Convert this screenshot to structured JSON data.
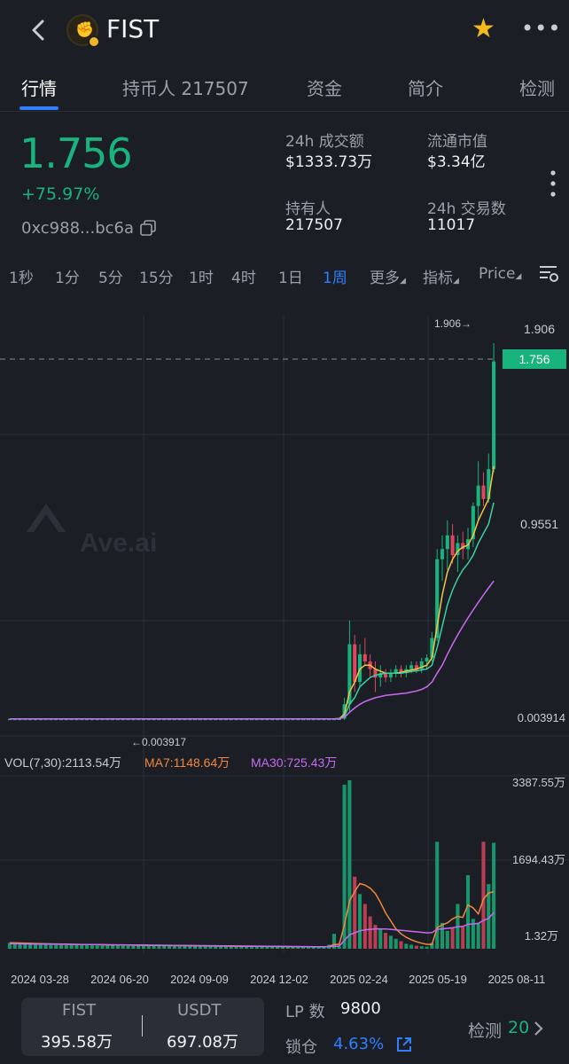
{
  "header": {
    "token": "FIST",
    "logo_icon": "fist-token-logo",
    "favorite_color": "#f5b91e"
  },
  "tabs": [
    {
      "label": "行情",
      "active": true
    },
    {
      "label": "持币人 217507",
      "active": false
    },
    {
      "label": "资金",
      "active": false
    },
    {
      "label": "简介",
      "active": false
    },
    {
      "label": "检测",
      "active": false
    }
  ],
  "stats": {
    "price": "1.756",
    "change": "+75.97%",
    "address": "0xc988...bc6a",
    "volume_24h_label": "24h 成交额",
    "volume_24h_value": "$1333.73万",
    "market_cap_label": "流通市值",
    "market_cap_value": "$3.34亿",
    "holders_label": "持有人",
    "holders_value": "217507",
    "txns_24h_label": "24h 交易数",
    "txns_24h_value": "11017"
  },
  "intervals": [
    "1秒",
    "1分",
    "5分",
    "15分",
    "1时",
    "4时",
    "1日",
    "1周"
  ],
  "interval_active": "1周",
  "toolbar": {
    "more": "更多",
    "indicators": "指标",
    "price": "Price"
  },
  "chart_data": {
    "type": "candlestick",
    "watermark": "Ave.ai",
    "price_axis": {
      "top": "1.906",
      "mid": "0.9551",
      "low": "0.003914"
    },
    "current_price": "1.756",
    "high_marker": "1.906→",
    "low_marker": "←0.003917",
    "x_labels": [
      "2024 03-28",
      "2024 06-20",
      "2024 09-09",
      "2024 12-02",
      "2025 02-24",
      "2025 05-19",
      "2025 08-11"
    ],
    "volume_legend": {
      "vol": "VOL(7,30):2113.54万",
      "ma7": "MA7:1148.64万",
      "ma30": "MA30:725.43万"
    },
    "volume_axis": {
      "top": "3387.55万",
      "mid": "1694.43万",
      "low": "1.32万"
    },
    "colors": {
      "up": "#19b37d",
      "down": "#e0475f",
      "ma_short": "#f5c542",
      "ma_mid": "#3ad29f",
      "ma_long": "#c86bf0",
      "vol_ma7": "#f0883e",
      "vol_ma30": "#c86bf0"
    },
    "candles": [
      [
        0.0039,
        0.0039,
        0.0039,
        0.0039
      ],
      [
        0.0039,
        0.0039,
        0.0039,
        0.0039
      ],
      [
        0.0039,
        0.0039,
        0.0039,
        0.0039
      ],
      [
        0.0039,
        0.0039,
        0.0039,
        0.0039
      ],
      [
        0.0039,
        0.0039,
        0.0039,
        0.0039
      ],
      [
        0.0039,
        0.0039,
        0.0039,
        0.0039
      ],
      [
        0.0039,
        0.0039,
        0.0039,
        0.0039
      ],
      [
        0.0039,
        0.0039,
        0.0039,
        0.0039
      ],
      [
        0.0039,
        0.0039,
        0.0039,
        0.0039
      ],
      [
        0.0039,
        0.0039,
        0.0039,
        0.0039
      ],
      [
        0.0039,
        0.0039,
        0.0039,
        0.0039
      ],
      [
        0.0039,
        0.0039,
        0.0039,
        0.0039
      ],
      [
        0.0039,
        0.0039,
        0.0039,
        0.0039
      ],
      [
        0.0039,
        0.0039,
        0.0039,
        0.0039
      ],
      [
        0.0039,
        0.0039,
        0.0039,
        0.0039
      ],
      [
        0.0039,
        0.0039,
        0.0039,
        0.0039
      ],
      [
        0.0039,
        0.0039,
        0.0039,
        0.0039
      ],
      [
        0.0039,
        0.0039,
        0.0039,
        0.0039
      ],
      [
        0.0039,
        0.0039,
        0.0039,
        0.0039
      ],
      [
        0.0039,
        0.0039,
        0.0039,
        0.0039
      ],
      [
        0.0039,
        0.0039,
        0.0039,
        0.0039
      ],
      [
        0.0039,
        0.0039,
        0.0039,
        0.0039
      ],
      [
        0.0039,
        0.0039,
        0.0039,
        0.0039
      ],
      [
        0.0039,
        0.0039,
        0.0039,
        0.0039
      ],
      [
        0.0039,
        0.0039,
        0.0039,
        0.0039
      ],
      [
        0.0039,
        0.0039,
        0.0039,
        0.0039
      ],
      [
        0.0039,
        0.0039,
        0.0039,
        0.0039
      ],
      [
        0.0039,
        0.0039,
        0.0039,
        0.0039
      ],
      [
        0.0039,
        0.0039,
        0.0039,
        0.0039
      ],
      [
        0.0039,
        0.0039,
        0.0039,
        0.0039
      ],
      [
        0.0039,
        0.0039,
        0.0039,
        0.0039
      ],
      [
        0.0039,
        0.0039,
        0.0039,
        0.0039
      ],
      [
        0.0039,
        0.0039,
        0.0039,
        0.0039
      ],
      [
        0.0039,
        0.0039,
        0.0039,
        0.0039
      ],
      [
        0.0039,
        0.0039,
        0.0039,
        0.0039
      ],
      [
        0.0039,
        0.0039,
        0.0039,
        0.0039
      ],
      [
        0.0039,
        0.0039,
        0.0039,
        0.0039
      ],
      [
        0.0039,
        0.0039,
        0.0039,
        0.0039
      ],
      [
        0.0039,
        0.0039,
        0.0039,
        0.0039
      ],
      [
        0.0039,
        0.0039,
        0.0039,
        0.0039
      ],
      [
        0.0039,
        0.0039,
        0.0039,
        0.0039
      ],
      [
        0.0039,
        0.0039,
        0.0039,
        0.0039
      ],
      [
        0.0039,
        0.0039,
        0.0039,
        0.0039
      ],
      [
        0.0039,
        0.0039,
        0.0039,
        0.0039
      ],
      [
        0.0039,
        0.0039,
        0.0039,
        0.0039
      ],
      [
        0.0039,
        0.0039,
        0.0039,
        0.0039
      ],
      [
        0.0039,
        0.0039,
        0.0039,
        0.0039
      ],
      [
        0.0039,
        0.0039,
        0.0039,
        0.0039
      ],
      [
        0.0039,
        0.0039,
        0.0039,
        0.0039
      ],
      [
        0.0039,
        0.0039,
        0.0039,
        0.0039
      ],
      [
        0.0039,
        0.0039,
        0.0039,
        0.0039
      ],
      [
        0.0039,
        0.0039,
        0.0039,
        0.0039
      ],
      [
        0.0039,
        0.0039,
        0.0039,
        0.0039
      ],
      [
        0.0039,
        0.0039,
        0.0039,
        0.0039
      ],
      [
        0.0039,
        0.0039,
        0.0039,
        0.0039
      ],
      [
        0.0039,
        0.0039,
        0.0039,
        0.0039
      ],
      [
        0.0039,
        0.0039,
        0.0039,
        0.0039
      ],
      [
        0.0039,
        0.0039,
        0.0039,
        0.0039
      ],
      [
        0.0039,
        0.0039,
        0.0039,
        0.0039
      ],
      [
        0.0039,
        0.0039,
        0.0039,
        0.0039
      ],
      [
        0.0039,
        0.0039,
        0.0039,
        0.0039
      ],
      [
        0.0039,
        0.0039,
        0.0039,
        0.0039
      ],
      [
        0.0039,
        0.0039,
        0.0039,
        0.0039
      ],
      [
        0.0039,
        0.0039,
        0.0039,
        0.0039
      ],
      [
        0.004,
        0.004,
        0.0039,
        0.004
      ],
      [
        0.004,
        0.03,
        0.003,
        0.02
      ],
      [
        0.02,
        0.24,
        0.01,
        0.16
      ],
      [
        0.16,
        0.19,
        0.04,
        0.06
      ],
      [
        0.06,
        0.16,
        0.05,
        0.13
      ],
      [
        0.13,
        0.18,
        0.1,
        0.11
      ],
      [
        0.11,
        0.13,
        0.07,
        0.09
      ],
      [
        0.09,
        0.11,
        0.04,
        0.07
      ],
      [
        0.07,
        0.1,
        0.05,
        0.08
      ],
      [
        0.08,
        0.09,
        0.06,
        0.07
      ],
      [
        0.07,
        0.09,
        0.06,
        0.08
      ],
      [
        0.08,
        0.1,
        0.07,
        0.09
      ],
      [
        0.09,
        0.1,
        0.07,
        0.08
      ],
      [
        0.08,
        0.1,
        0.07,
        0.09
      ],
      [
        0.09,
        0.11,
        0.08,
        0.1
      ],
      [
        0.1,
        0.11,
        0.08,
        0.09
      ],
      [
        0.09,
        0.12,
        0.08,
        0.11
      ],
      [
        0.11,
        0.13,
        0.09,
        0.12
      ],
      [
        0.12,
        0.2,
        0.11,
        0.18
      ],
      [
        0.18,
        0.55,
        0.17,
        0.5
      ],
      [
        0.5,
        0.62,
        0.4,
        0.55
      ],
      [
        0.55,
        0.7,
        0.45,
        0.62
      ],
      [
        0.62,
        0.68,
        0.48,
        0.52
      ],
      [
        0.52,
        0.62,
        0.44,
        0.58
      ],
      [
        0.58,
        0.64,
        0.5,
        0.55
      ],
      [
        0.55,
        0.66,
        0.5,
        0.6
      ],
      [
        0.6,
        0.8,
        0.56,
        0.78
      ],
      [
        0.78,
        1.05,
        0.7,
        0.9
      ],
      [
        0.9,
        0.98,
        0.78,
        0.82
      ],
      [
        0.82,
        1.1,
        0.8,
        1.0
      ],
      [
        1.0,
        1.9,
        0.98,
        1.756
      ]
    ],
    "ma_short": [
      0.0039,
      0.0039,
      0.0039,
      0.0039,
      0.0039,
      0.0039,
      0.0039,
      0.0039,
      0.0039,
      0.0039,
      0.0039,
      0.0039,
      0.0039,
      0.0039,
      0.0039,
      0.0039,
      0.0039,
      0.0039,
      0.0039,
      0.0039,
      0.0039,
      0.0039,
      0.0039,
      0.0039,
      0.0039,
      0.0039,
      0.0039,
      0.0039,
      0.0039,
      0.0039,
      0.0039,
      0.0039,
      0.0039,
      0.0039,
      0.0039,
      0.0039,
      0.0039,
      0.0039,
      0.0039,
      0.0039,
      0.0039,
      0.0039,
      0.0039,
      0.0039,
      0.0039,
      0.0039,
      0.0039,
      0.0039,
      0.0039,
      0.0039,
      0.0039,
      0.0039,
      0.0039,
      0.0039,
      0.0039,
      0.0039,
      0.0039,
      0.0039,
      0.0039,
      0.0039,
      0.0039,
      0.0039,
      0.0039,
      0.0039,
      0.004,
      0.008,
      0.04,
      0.06,
      0.09,
      0.1,
      0.1,
      0.09,
      0.085,
      0.08,
      0.08,
      0.08,
      0.082,
      0.085,
      0.088,
      0.09,
      0.095,
      0.1,
      0.12,
      0.22,
      0.34,
      0.44,
      0.5,
      0.54,
      0.56,
      0.57,
      0.62,
      0.7,
      0.76,
      0.82,
      1.02
    ],
    "ma_mid": [
      0.0039,
      0.0039,
      0.0039,
      0.0039,
      0.0039,
      0.0039,
      0.0039,
      0.0039,
      0.0039,
      0.0039,
      0.0039,
      0.0039,
      0.0039,
      0.0039,
      0.0039,
      0.0039,
      0.0039,
      0.0039,
      0.0039,
      0.0039,
      0.0039,
      0.0039,
      0.0039,
      0.0039,
      0.0039,
      0.0039,
      0.0039,
      0.0039,
      0.0039,
      0.0039,
      0.0039,
      0.0039,
      0.0039,
      0.0039,
      0.0039,
      0.0039,
      0.0039,
      0.0039,
      0.0039,
      0.0039,
      0.0039,
      0.0039,
      0.0039,
      0.0039,
      0.0039,
      0.0039,
      0.0039,
      0.0039,
      0.0039,
      0.0039,
      0.0039,
      0.0039,
      0.0039,
      0.0039,
      0.0039,
      0.0039,
      0.0039,
      0.0039,
      0.0039,
      0.0039,
      0.0039,
      0.0039,
      0.0039,
      0.0039,
      0.004,
      0.006,
      0.02,
      0.03,
      0.05,
      0.06,
      0.07,
      0.075,
      0.078,
      0.08,
      0.08,
      0.08,
      0.08,
      0.082,
      0.084,
      0.086,
      0.088,
      0.09,
      0.1,
      0.15,
      0.22,
      0.3,
      0.36,
      0.41,
      0.45,
      0.48,
      0.52,
      0.58,
      0.63,
      0.68,
      0.8
    ],
    "ma_long": [
      0.0039,
      0.0039,
      0.0039,
      0.0039,
      0.0039,
      0.0039,
      0.0039,
      0.0039,
      0.0039,
      0.0039,
      0.0039,
      0.0039,
      0.0039,
      0.0039,
      0.0039,
      0.0039,
      0.0039,
      0.0039,
      0.0039,
      0.0039,
      0.0039,
      0.0039,
      0.0039,
      0.0039,
      0.0039,
      0.0039,
      0.0039,
      0.0039,
      0.0039,
      0.0039,
      0.0039,
      0.0039,
      0.0039,
      0.0039,
      0.0039,
      0.0039,
      0.0039,
      0.0039,
      0.0039,
      0.0039,
      0.0039,
      0.0039,
      0.0039,
      0.0039,
      0.0039,
      0.0039,
      0.0039,
      0.0039,
      0.0039,
      0.0039,
      0.0039,
      0.0039,
      0.0039,
      0.0039,
      0.0039,
      0.0039,
      0.0039,
      0.0039,
      0.0039,
      0.0039,
      0.0039,
      0.0039,
      0.0039,
      0.0039,
      0.004,
      0.005,
      0.01,
      0.015,
      0.02,
      0.024,
      0.027,
      0.03,
      0.032,
      0.034,
      0.035,
      0.036,
      0.037,
      0.038,
      0.04,
      0.042,
      0.045,
      0.05,
      0.06,
      0.08,
      0.1,
      0.13,
      0.16,
      0.19,
      0.22,
      0.25,
      0.28,
      0.31,
      0.34,
      0.37,
      0.4
    ],
    "volume": [
      120,
      110,
      100,
      95,
      90,
      88,
      85,
      82,
      80,
      78,
      76,
      75,
      74,
      72,
      70,
      70,
      68,
      66,
      65,
      64,
      63,
      62,
      60,
      60,
      58,
      57,
      56,
      55,
      55,
      54,
      53,
      52,
      51,
      50,
      50,
      49,
      48,
      47,
      46,
      46,
      45,
      44,
      44,
      43,
      42,
      42,
      41,
      40,
      40,
      39,
      39,
      38,
      38,
      37,
      37,
      36,
      36,
      35,
      35,
      34,
      34,
      33,
      80,
      300,
      40,
      3300,
      3387,
      1450,
      1100,
      900,
      650,
      480,
      400,
      320,
      260,
      200,
      150,
      100,
      80,
      60,
      50,
      40,
      120,
      2150,
      520,
      360,
      430,
      900,
      460,
      1480,
      600,
      520,
      2150,
      1300,
      2130
    ],
    "vol_ma7": [
      120,
      118,
      115,
      112,
      109,
      106,
      103,
      100,
      98,
      96,
      94,
      92,
      90,
      88,
      86,
      85,
      84,
      82,
      80,
      78,
      77,
      76,
      75,
      74,
      72,
      70,
      69,
      68,
      67,
      66,
      65,
      64,
      63,
      62,
      61,
      60,
      59,
      58,
      57,
      56,
      55,
      54,
      53,
      52,
      51,
      50,
      50,
      49,
      48,
      47,
      46,
      45,
      44,
      43,
      42,
      41,
      40,
      40,
      39,
      38,
      38,
      37,
      45,
      85,
      90,
      480,
      960,
      1150,
      1310,
      1280,
      1220,
      1110,
      930,
      720,
      560,
      400,
      300,
      230,
      180,
      140,
      110,
      90,
      85,
      420,
      480,
      520,
      600,
      650,
      630,
      880,
      820,
      700,
      1000,
      1120,
      1148
    ],
    "vol_ma30": [
      100,
      99,
      98,
      97,
      96,
      95,
      94,
      93,
      92,
      91,
      90,
      89,
      88,
      87,
      86,
      85,
      84,
      83,
      82,
      81,
      80,
      79,
      78,
      77,
      76,
      75,
      74,
      73,
      72,
      71,
      70,
      69,
      68,
      67,
      66,
      65,
      64,
      63,
      62,
      61,
      60,
      59,
      58,
      57,
      56,
      55,
      54,
      53,
      52,
      51,
      50,
      49,
      48,
      47,
      46,
      45,
      44,
      43,
      42,
      41,
      40,
      40,
      42,
      50,
      52,
      170,
      280,
      320,
      360,
      380,
      390,
      400,
      400,
      395,
      390,
      380,
      370,
      360,
      350,
      340,
      330,
      320,
      325,
      390,
      400,
      410,
      420,
      440,
      450,
      490,
      500,
      510,
      570,
      610,
      725
    ]
  },
  "bottom": {
    "base_label": "FIST",
    "base_value": "395.58万",
    "quote_label": "USDT",
    "quote_value": "697.08万",
    "lp_label": "LP 数",
    "lp_value": "9800",
    "lock_label": "锁仓",
    "lock_value": "4.63%",
    "detect_label": "检测",
    "detect_count": "20"
  }
}
